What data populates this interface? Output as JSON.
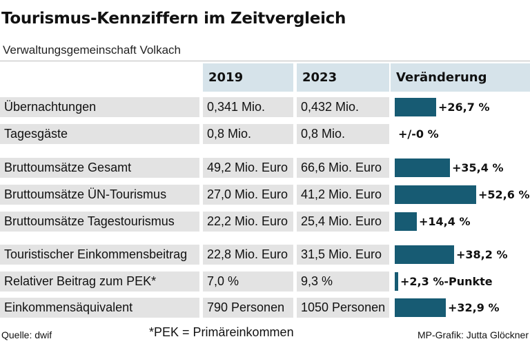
{
  "title": "Tourismus-Kennziffern im Zeitvergleich",
  "subtitle": "Verwaltungsgemeinschaft Volkach",
  "colors": {
    "bar": "#175b73",
    "header_bg": "#d6e3ea",
    "row_bg": "#e3e3e3"
  },
  "chart_data": {
    "type": "table",
    "columns": [
      "",
      "2019",
      "2023",
      "Veränderung"
    ],
    "rows": [
      {
        "label": "Übernachtungen",
        "v2019": "0,341 Mio.",
        "v2023": "0,432 Mio.",
        "change": 26.7,
        "change_label": "+26,7 %"
      },
      {
        "label": "Tagesgäste",
        "v2019": "0,8 Mio.",
        "v2023": "0,8 Mio.",
        "change": 0,
        "change_label": "+/-0 %"
      },
      {
        "label": "Bruttoumsätze Gesamt",
        "v2019": "49,2 Mio. Euro",
        "v2023": "66,6 Mio. Euro",
        "change": 35.4,
        "change_label": "+35,4 %"
      },
      {
        "label": "Bruttoumsätze ÜN-Tourismus",
        "v2019": "27,0 Mio. Euro",
        "v2023": "41,2 Mio. Euro",
        "change": 52.6,
        "change_label": "+52,6 %"
      },
      {
        "label": "Bruttoumsätze Tagestourismus",
        "v2019": "22,2 Mio. Euro",
        "v2023": "25,4 Mio. Euro",
        "change": 14.4,
        "change_label": "+14,4 %"
      },
      {
        "label": "Touristischer Einkommensbeitrag",
        "v2019": "22,8 Mio. Euro",
        "v2023": "31,5 Mio. Euro",
        "change": 38.2,
        "change_label": "+38,2 %"
      },
      {
        "label": "Relativer Beitrag zum PEK*",
        "v2019": "7,0 %",
        "v2023": "9,3 %",
        "change": 2.3,
        "change_label": "+2,3 %-Punkte"
      },
      {
        "label": "Einkommensäquivalent",
        "v2019": "790 Personen",
        "v2023": "1050 Personen",
        "change": 32.9,
        "change_label": "+32,9 %"
      }
    ]
  },
  "footer": {
    "source": "Quelle: dwif",
    "footnote": "*PEK = Primäreinkommen",
    "credit": "MP-Grafik: Jutta Glöckner"
  }
}
